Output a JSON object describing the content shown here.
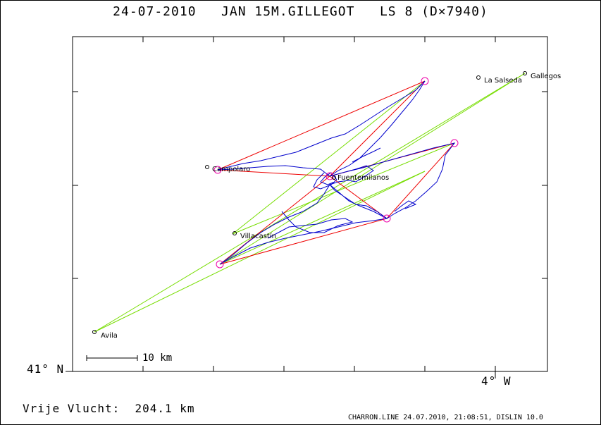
{
  "title": "24-07-2010   JAN 15M.GILLEGOT   LS 8 (D×7940)",
  "axes": {
    "lat_label": "41° N",
    "lon_label": "4° W"
  },
  "scale_bar": {
    "label": "10 km"
  },
  "footer": {
    "distance_text": "Vrije Vlucht:  204.1 km",
    "credit": "CHARRON.LINE 24.07.2010, 21:08:51, DISLIN 10.0"
  },
  "towns": [
    {
      "name": "Gallegos"
    },
    {
      "name": "La Salseda"
    },
    {
      "name": "Campolaro"
    },
    {
      "name": "Fuentemilanos"
    },
    {
      "name": "Villacastín"
    },
    {
      "name": "Avila"
    }
  ],
  "colors": {
    "track": "#0000cc",
    "turnpoint_lines": "#ee0000",
    "optimized_lines": "#77dd00",
    "turnpoint_circle": "#ee00aa"
  }
}
